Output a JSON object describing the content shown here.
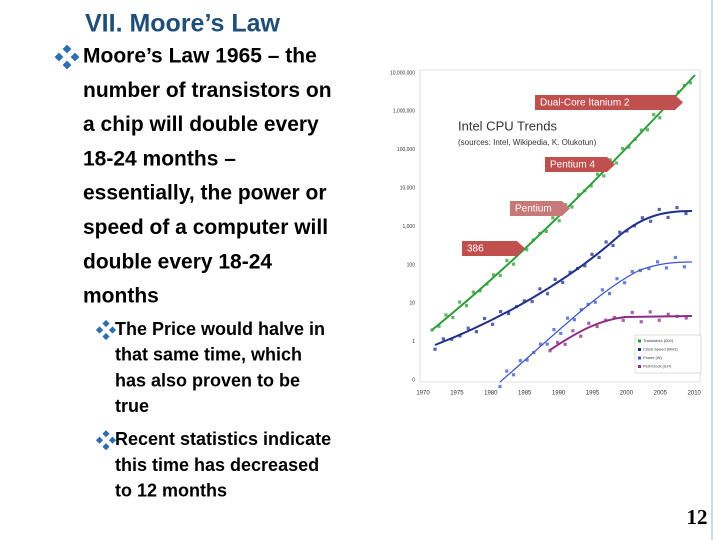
{
  "title": "VII. Moore’s Law",
  "bullets": [
    {
      "lines": [
        "Moore’s Law 1965 – the",
        "number of transistors on",
        "a chip will double every",
        "18-24 months –",
        "essentially, the power or",
        "speed of a computer will",
        "double every 18-24",
        "months"
      ],
      "sub": [
        {
          "lines": [
            "The Price would halve in",
            "that same time, which",
            "has also proven to be",
            "true"
          ]
        },
        {
          "lines": [
            "Recent statistics indicate",
            "this time has decreased",
            "to 12 months"
          ]
        }
      ]
    }
  ],
  "figure": {
    "title": "Intel CPU Trends",
    "source": "(sources: Intel, Wikipedia, K. Olukotun)",
    "yticks": [
      "10,000,000",
      "1,000,000",
      "100,000",
      "10,000",
      "1,000",
      "100",
      "10",
      "1",
      "0"
    ],
    "xticks": [
      "1970",
      "1975",
      "1980",
      "1985",
      "1990",
      "1995",
      "2000",
      "2005",
      "2010"
    ],
    "callouts": [
      "Dual-Core Itanium 2",
      "Pentium 4",
      "Pentium",
      "386"
    ],
    "legend": [
      "Transistors (000)",
      "Clock Speed (MHz)",
      "Power (W)",
      "Perf/Clock (ILP)"
    ]
  },
  "page_number": "12"
}
